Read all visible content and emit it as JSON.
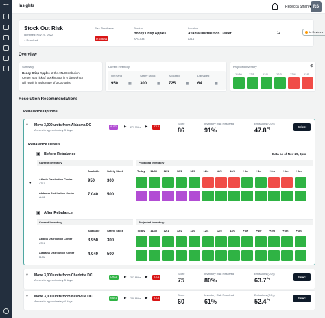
{
  "app": {
    "title": "Insights",
    "user_name": "Rebecca Smith",
    "user_initials": "RS"
  },
  "header": {
    "title": "Stock Out Risk",
    "identified": "Identified: Nov 20, 2022",
    "resolved": "Resolved",
    "risk_label": "Risk Timeframe",
    "risk_value": "In 6 days",
    "product_label": "Product",
    "product_name": "Honey Crisp Apples",
    "product_code": "APL-034",
    "location_label": "Location",
    "location_name": "Atlanta Distribution Center",
    "location_code": "ATL1",
    "status": "In Review"
  },
  "overview": {
    "heading": "Overview",
    "summary_label": "Summary",
    "summary_pre": "Honey Crisp Apples",
    "summary_text1": " at the ATL Distribution",
    "summary_line2": "Center is at risk of stocking out in 6 days which",
    "summary_line3": "will result in a shortage of 3,000 units.",
    "inventory_label": "Current Inventory",
    "inv_cols": [
      "On Hand",
      "Safety Stock",
      "Allocated",
      "Damaged"
    ],
    "inv_vals": [
      "950",
      "300",
      "725",
      "64"
    ],
    "projected_label": "Projected Inventory",
    "proj_dates": [
      "11/30",
      "12/1",
      "12/2",
      "12/3",
      "12/4",
      "12/5"
    ],
    "proj_colors": [
      "g",
      "g",
      "g",
      "g",
      "r",
      "r"
    ]
  },
  "resolution": {
    "heading": "Resolution Recommendations",
    "options_heading": "Rebalance Options"
  },
  "options": [
    {
      "title": "Move 3,000 units from Alabama DC",
      "sub": "Arrives in approximately 3 days",
      "from": "ALB2",
      "from_color": "#b24dd4",
      "miles": "279 Miles",
      "to": "ATL1",
      "score_label": "Score",
      "score": "86",
      "resolved_label": "Inventory Risk Resolved",
      "resolved": "91%",
      "emissions_label": "Emissions (CO₂)",
      "emissions": "47.8",
      "emissions_unit": "kg",
      "button": "Select"
    },
    {
      "title": "Move 3,000 units from Charlotte DC",
      "sub": "Arrives in approximately 5 days",
      "from": "CHA1",
      "from_color": "#2fb344",
      "miles": "302 Miles",
      "to": "ATL1",
      "score_label": "Score",
      "score": "75",
      "resolved_label": "Inventory Risk Resolved",
      "resolved": "80%",
      "emissions_label": "Emissions (CO₂)",
      "emissions": "63.7",
      "emissions_unit": "kg",
      "button": "Select"
    },
    {
      "title": "Move 3,000 units from Nashville DC",
      "sub": "Arrives in approximately 4 days",
      "from": "NAS1",
      "from_color": "#2fb344",
      "miles": "288 Miles",
      "to": "ATL1",
      "score_label": "Score",
      "score": "60",
      "resolved_label": "Inventory Risk Resolved",
      "resolved": "61%",
      "emissions_label": "Emissions (CO₂)",
      "emissions": "52.4",
      "emissions_unit": "kg",
      "button": "Select"
    }
  ],
  "details": {
    "heading": "Rebalance Details",
    "as_of": "Data as of Nov 29, 3pm",
    "before_heading": "Before Rebalance",
    "after_heading": "After Rebalance",
    "current_inv": "Current Inventory",
    "projected_inv": "Projected inventory",
    "col_available": "Available",
    "col_safety": "Safety Stock",
    "dates": [
      "Today",
      "11/30",
      "12/1",
      "12/2",
      "12/3",
      "12/4",
      "12/5",
      "12/6",
      "+3w",
      "+4w",
      "+2m",
      "+3m",
      "+6m"
    ],
    "before_rows": [
      {
        "name": "Atlanta Distribution Center",
        "code": "ATL1",
        "available": "950",
        "safety": "300",
        "cells": [
          "g",
          "g",
          "g",
          "g",
          "g",
          "r",
          "r",
          "r",
          "g",
          "g",
          "r",
          "r",
          "g"
        ]
      },
      {
        "name": "Alabama Distribution Center",
        "code": "ALB2",
        "available": "7,040",
        "safety": "500",
        "cells": [
          "p",
          "p",
          "p",
          "p",
          "p",
          "g",
          "g",
          "g",
          "g",
          "g",
          "g",
          "g",
          "g"
        ]
      }
    ],
    "after_rows": [
      {
        "name": "Atlanta Distribution Center",
        "code": "ATL1",
        "available": "3,950",
        "safety": "300",
        "cells": [
          "g",
          "g",
          "g",
          "g",
          "g",
          "g",
          "g",
          "g",
          "g",
          "g",
          "g",
          "g",
          "g"
        ]
      },
      {
        "name": "Alabama Distribution Center",
        "code": "ALB2",
        "available": "4,040",
        "safety": "500",
        "cells": [
          "g",
          "g",
          "g",
          "g",
          "g",
          "g",
          "g",
          "g",
          "g",
          "g",
          "g",
          "g",
          "g"
        ]
      }
    ]
  }
}
